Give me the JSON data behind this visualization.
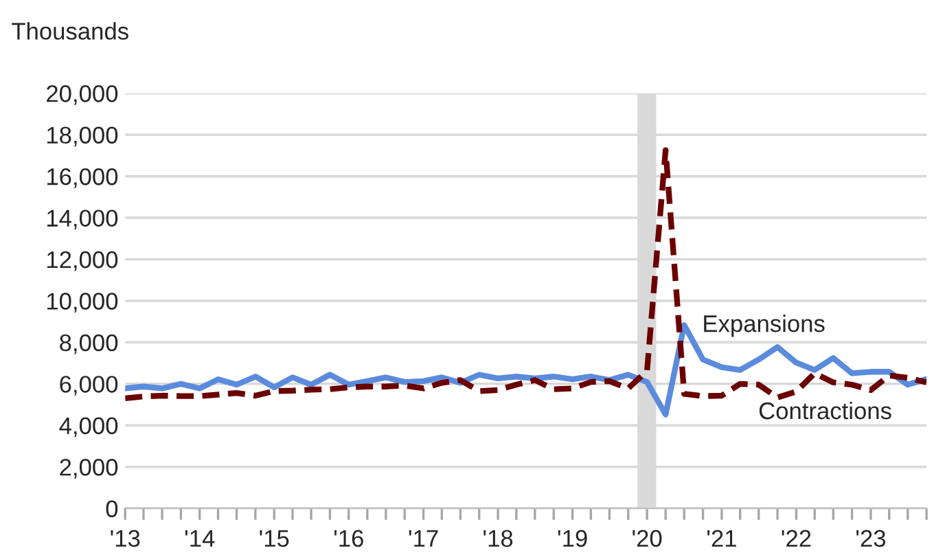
{
  "chart_data": {
    "type": "line",
    "ylabel": "Thousands",
    "x": [
      "2013-01",
      "2013-04",
      "2013-07",
      "2013-10",
      "2014-01",
      "2014-04",
      "2014-07",
      "2014-10",
      "2015-01",
      "2015-04",
      "2015-07",
      "2015-10",
      "2016-01",
      "2016-04",
      "2016-07",
      "2016-10",
      "2017-01",
      "2017-04",
      "2017-07",
      "2017-10",
      "2018-01",
      "2018-04",
      "2018-07",
      "2018-10",
      "2019-01",
      "2019-04",
      "2019-07",
      "2019-10",
      "2020-01",
      "2020-04",
      "2020-07",
      "2020-10",
      "2021-01",
      "2021-04",
      "2021-07",
      "2021-10",
      "2022-01",
      "2022-04",
      "2022-07",
      "2022-10",
      "2023-01",
      "2023-04",
      "2023-07",
      "2023-10"
    ],
    "series": [
      {
        "name": "Expansions",
        "color": "#5b8bdc",
        "line_style": "solid",
        "values": [
          5780,
          5870,
          5780,
          6000,
          5780,
          6220,
          5960,
          6350,
          5830,
          6310,
          5960,
          6440,
          5960,
          6130,
          6310,
          6090,
          6130,
          6310,
          6050,
          6440,
          6260,
          6350,
          6260,
          6350,
          6220,
          6350,
          6180,
          6440,
          6090,
          4520,
          8830,
          7170,
          6800,
          6670,
          7170,
          7770,
          7020,
          6670,
          7240,
          6510,
          6580,
          6580,
          5960,
          6230
        ]
      },
      {
        "name": "Contractions",
        "color": "#6b0000",
        "line_style": "dashed",
        "values": [
          5300,
          5390,
          5430,
          5410,
          5410,
          5480,
          5560,
          5430,
          5650,
          5670,
          5720,
          5740,
          5830,
          5870,
          5870,
          5920,
          5780,
          6050,
          6180,
          5650,
          5700,
          5960,
          6180,
          5740,
          5780,
          6090,
          6130,
          5780,
          6620,
          17260,
          5520,
          5410,
          5430,
          6000,
          5960,
          5340,
          5630,
          6510,
          6070,
          5960,
          5700,
          6400,
          6290,
          6070
        ]
      }
    ],
    "xlim": [
      "2013-01",
      "2023-10"
    ],
    "xticks": [
      {
        "value": "2013-01",
        "label": "'13"
      },
      {
        "value": "2013-04",
        "label": null
      },
      {
        "value": "2013-07",
        "label": null
      },
      {
        "value": "2013-10",
        "label": null
      },
      {
        "value": "2014-01",
        "label": "'14"
      },
      {
        "value": "2014-04",
        "label": null
      },
      {
        "value": "2014-07",
        "label": null
      },
      {
        "value": "2014-10",
        "label": null
      },
      {
        "value": "2015-01",
        "label": "'15"
      },
      {
        "value": "2015-04",
        "label": null
      },
      {
        "value": "2015-07",
        "label": null
      },
      {
        "value": "2015-10",
        "label": null
      },
      {
        "value": "2016-01",
        "label": "'16"
      },
      {
        "value": "2016-04",
        "label": null
      },
      {
        "value": "2016-07",
        "label": null
      },
      {
        "value": "2016-10",
        "label": null
      },
      {
        "value": "2017-01",
        "label": "'17"
      },
      {
        "value": "2017-04",
        "label": null
      },
      {
        "value": "2017-07",
        "label": null
      },
      {
        "value": "2017-10",
        "label": null
      },
      {
        "value": "2018-01",
        "label": "'18"
      },
      {
        "value": "2018-04",
        "label": null
      },
      {
        "value": "2018-07",
        "label": null
      },
      {
        "value": "2018-10",
        "label": null
      },
      {
        "value": "2019-01",
        "label": "'19"
      },
      {
        "value": "2019-04",
        "label": null
      },
      {
        "value": "2019-07",
        "label": null
      },
      {
        "value": "2019-10",
        "label": null
      },
      {
        "value": "2020-01",
        "label": "'20"
      },
      {
        "value": "2020-04",
        "label": null
      },
      {
        "value": "2020-07",
        "label": null
      },
      {
        "value": "2020-10",
        "label": null
      },
      {
        "value": "2021-01",
        "label": "'21"
      },
      {
        "value": "2021-04",
        "label": null
      },
      {
        "value": "2021-07",
        "label": null
      },
      {
        "value": "2021-10",
        "label": null
      },
      {
        "value": "2022-01",
        "label": "'22"
      },
      {
        "value": "2022-04",
        "label": null
      },
      {
        "value": "2022-07",
        "label": null
      },
      {
        "value": "2022-10",
        "label": null
      },
      {
        "value": "2023-01",
        "label": "'23"
      },
      {
        "value": "2023-04",
        "label": null
      },
      {
        "value": "2023-07",
        "label": null
      },
      {
        "value": "2023-10",
        "label": null
      }
    ],
    "ylim": [
      0,
      20000
    ],
    "yticks": [
      {
        "value": 0,
        "label": "0"
      },
      {
        "value": 2000,
        "label": "2,000"
      },
      {
        "value": 4000,
        "label": "4,000"
      },
      {
        "value": 6000,
        "label": "6,000"
      },
      {
        "value": 8000,
        "label": "8,000"
      },
      {
        "value": 10000,
        "label": "10,000"
      },
      {
        "value": 12000,
        "label": "12,000"
      },
      {
        "value": 14000,
        "label": "14,000"
      },
      {
        "value": 16000,
        "label": "16,000"
      },
      {
        "value": 18000,
        "label": "18,000"
      },
      {
        "value": 20000,
        "label": "20,000"
      }
    ],
    "bands": [
      {
        "axis": "x",
        "from": "2019-11-15",
        "to": "2020-02-15",
        "label": null,
        "color": "#d9d9d9"
      }
    ],
    "grid": "y",
    "legend": false,
    "marker": "none"
  }
}
